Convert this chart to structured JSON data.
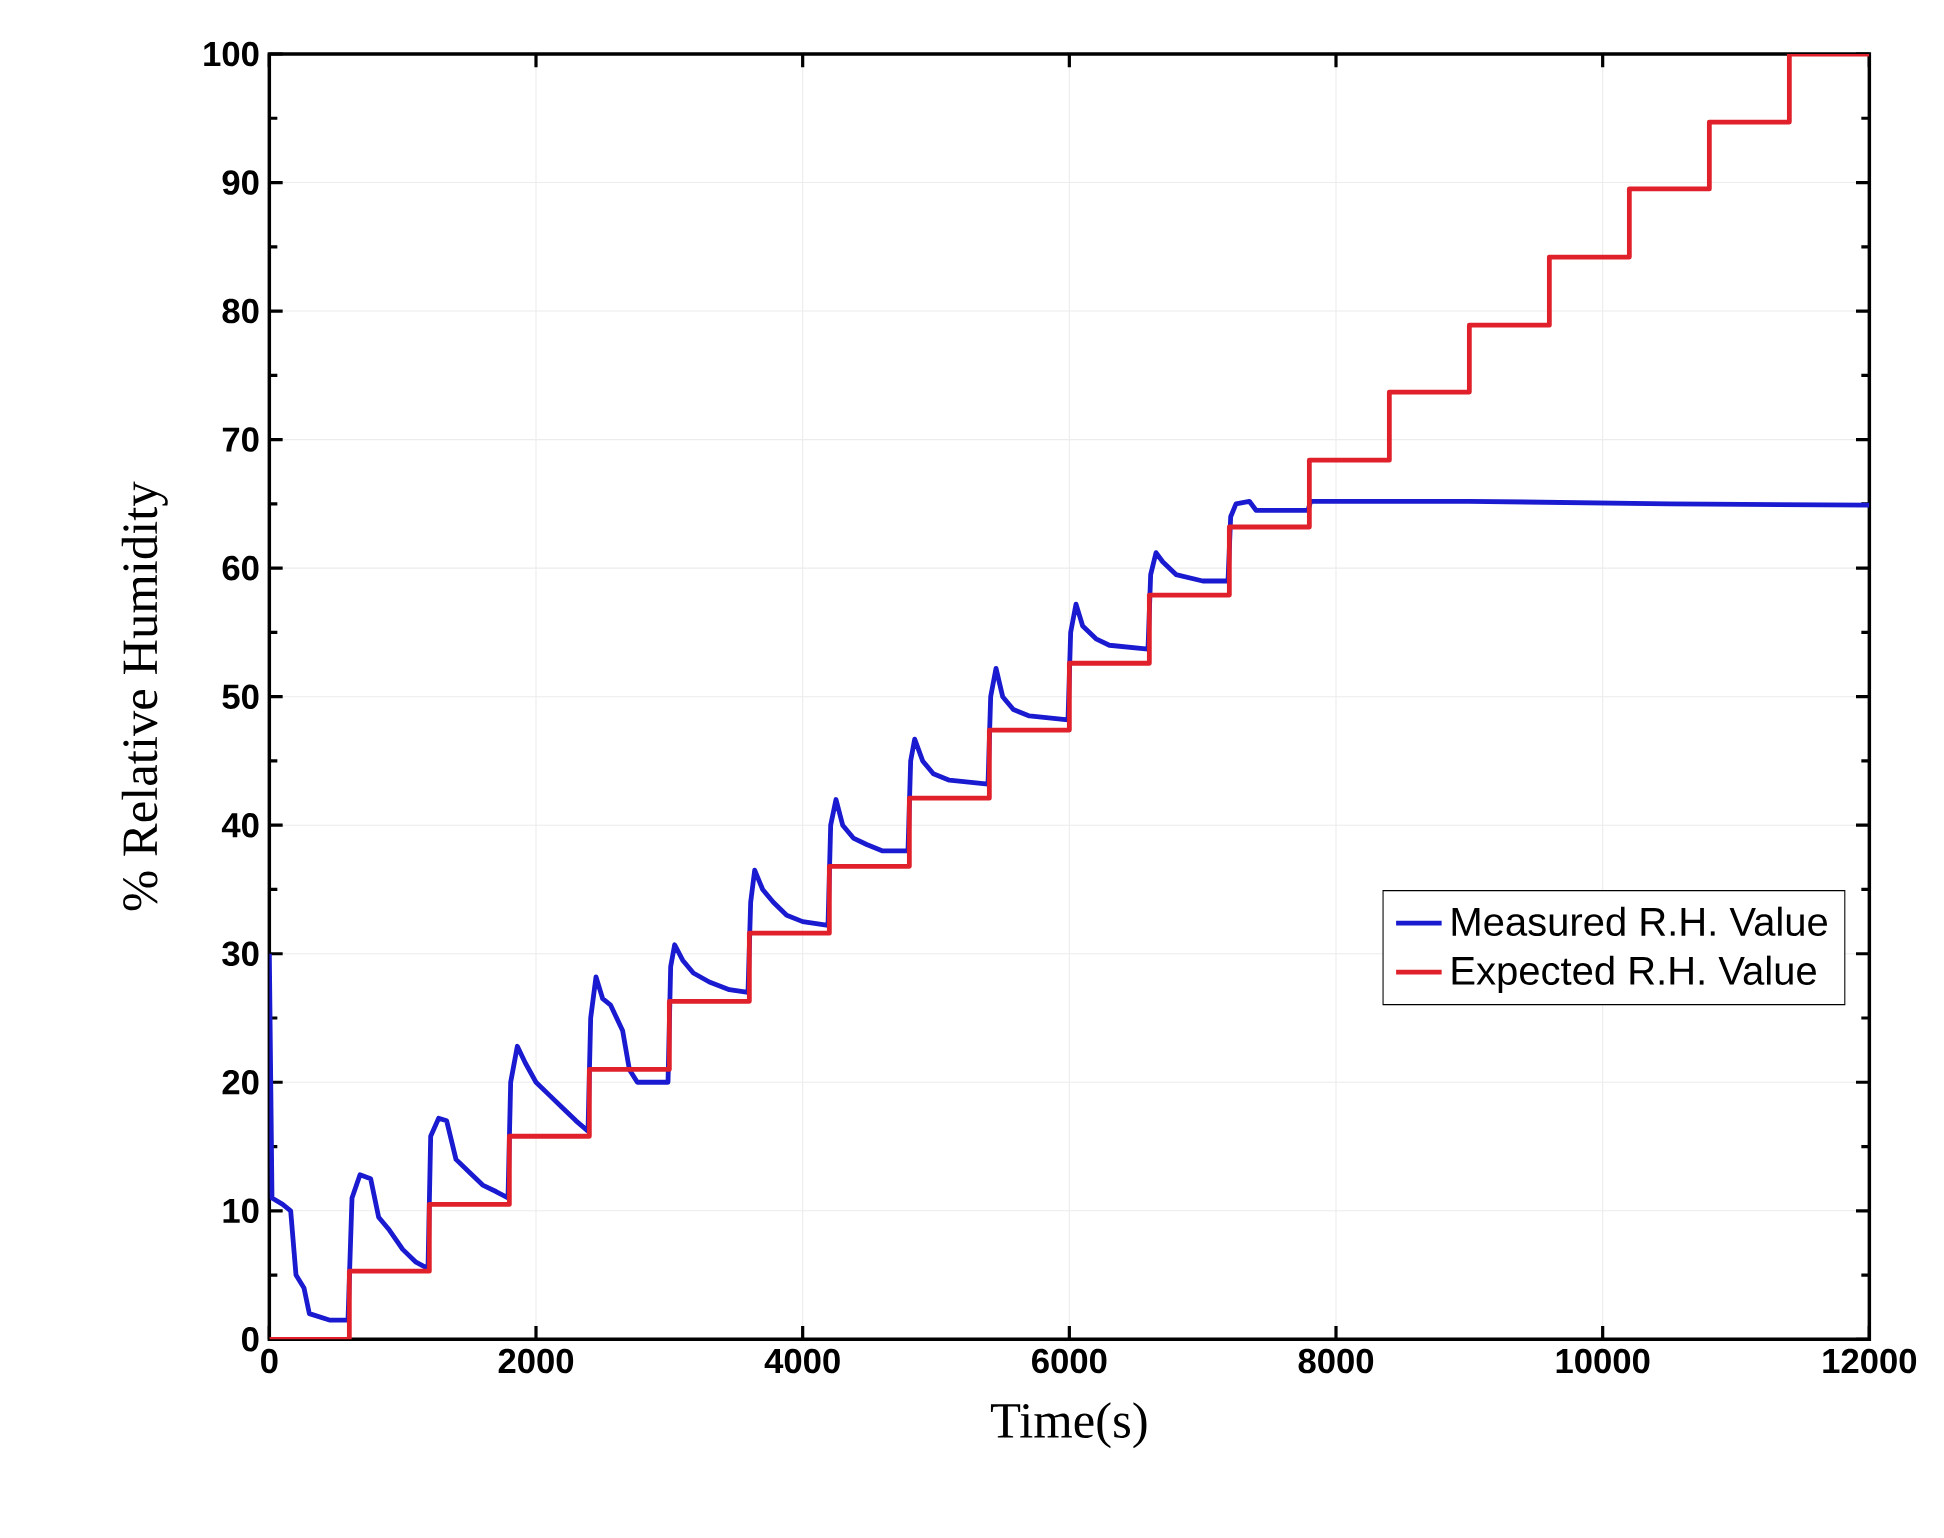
{
  "chart_data": {
    "type": "line",
    "xlabel": "Time(s)",
    "ylabel": "% Relative Humidity",
    "xlim": [
      0,
      12000
    ],
    "ylim": [
      0,
      100
    ],
    "xticks": [
      0,
      2000,
      4000,
      6000,
      8000,
      10000,
      12000
    ],
    "yticks": [
      0,
      10,
      20,
      30,
      40,
      50,
      60,
      70,
      80,
      90,
      100
    ],
    "grid": true,
    "legend": "bottom right",
    "line_style": "solid",
    "marker": "none",
    "series": [
      {
        "name": "Measured R.H. Value",
        "color": "#1a1ad0",
        "type": "line",
        "x": [
          0,
          20,
          100,
          160,
          200,
          260,
          300,
          450,
          590,
          620,
          680,
          760,
          820,
          900,
          1000,
          1100,
          1190,
          1210,
          1270,
          1330,
          1400,
          1500,
          1600,
          1700,
          1790,
          1810,
          1860,
          1920,
          2000,
          2100,
          2200,
          2300,
          2390,
          2410,
          2450,
          2500,
          2560,
          2650,
          2700,
          2760,
          2990,
          3010,
          3040,
          3100,
          3180,
          3300,
          3450,
          3590,
          3610,
          3640,
          3700,
          3780,
          3880,
          4000,
          4190,
          4210,
          4250,
          4300,
          4380,
          4480,
          4600,
          4790,
          4810,
          4840,
          4900,
          4980,
          5100,
          5390,
          5410,
          5450,
          5500,
          5580,
          5700,
          5990,
          6010,
          6050,
          6100,
          6200,
          6300,
          6590,
          6610,
          6650,
          6700,
          6800,
          7000,
          7190,
          7210,
          7250,
          7350,
          7400,
          7790,
          7810,
          9000,
          10500,
          12000
        ],
        "values": [
          30,
          11,
          10.5,
          10,
          5,
          4,
          2,
          1.5,
          1.5,
          11,
          12.8,
          12.5,
          9.5,
          8.5,
          7,
          6,
          5.5,
          15.8,
          17.2,
          17,
          14,
          13,
          12,
          11.5,
          11,
          20,
          22.8,
          21.5,
          20,
          19,
          18,
          17,
          16.2,
          25,
          28.2,
          26.5,
          26,
          24,
          21,
          20,
          20,
          29,
          30.7,
          29.5,
          28.5,
          27.8,
          27.2,
          27,
          34,
          36.5,
          35,
          34,
          33,
          32.5,
          32.2,
          40,
          42,
          40,
          39,
          38.5,
          38,
          38,
          45,
          46.7,
          45,
          44,
          43.5,
          43.2,
          50,
          52.2,
          50,
          49,
          48.5,
          48.2,
          55,
          57.2,
          55.5,
          54.5,
          54,
          53.7,
          59.5,
          61.2,
          60.5,
          59.5,
          59,
          59,
          64,
          65,
          65.2,
          64.5,
          64.5,
          65.2,
          65.2,
          65,
          64.9
        ]
      },
      {
        "name": "Expected R.H. Value",
        "color": "#e0202a",
        "type": "step",
        "x": [
          0,
          600,
          1200,
          1800,
          2400,
          3000,
          3600,
          4200,
          4800,
          5400,
          6000,
          6600,
          7200,
          7800,
          8400,
          9000,
          9600,
          10200,
          10800,
          11400,
          12000
        ],
        "values": [
          0,
          5.3,
          10.5,
          15.8,
          21,
          26.3,
          31.6,
          36.8,
          42.1,
          47.4,
          52.6,
          57.9,
          63.2,
          68.4,
          73.7,
          78.9,
          84.2,
          89.5,
          94.7,
          100,
          100
        ]
      }
    ]
  }
}
